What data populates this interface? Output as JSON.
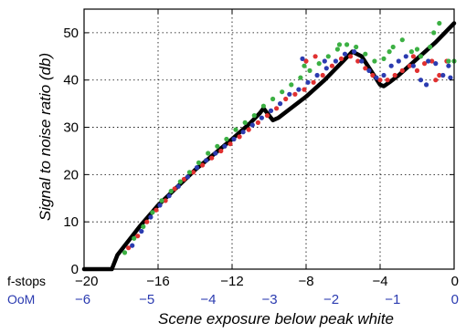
{
  "chart_data": {
    "type": "scatter",
    "xlabel": "Scene exposure below peak white",
    "ylabel": "Signal to noise ratio (db)",
    "xlim": [
      -20,
      0
    ],
    "ylim": [
      0,
      55
    ],
    "grid": true,
    "x_ticks": [
      -20,
      -16,
      -12,
      -8,
      -4,
      0
    ],
    "x_tick_labels": [
      "−20",
      "−16",
      "−12",
      "−8",
      "−4",
      "0"
    ],
    "y_ticks": [
      0,
      10,
      20,
      30,
      40,
      50
    ],
    "y_tick_labels": [
      "0",
      "10",
      "20",
      "30",
      "40",
      "50"
    ],
    "secondary_axis": {
      "label": "OoM",
      "ticks": [
        -20,
        -16.61,
        -13.29,
        -9.97,
        -6.64,
        -3.32,
        0
      ],
      "tick_labels": [
        "−6",
        "−5",
        "−4",
        "−3",
        "−2",
        "−1",
        "0"
      ],
      "color": "#2b3bb0"
    },
    "primary_axis_label": "f-stops",
    "series": [
      {
        "color": "#000000",
        "style": "line",
        "points": [
          [
            -20,
            0
          ],
          [
            -18.8,
            0
          ],
          [
            -18.5,
            0
          ],
          [
            -18.2,
            3
          ],
          [
            -17,
            9
          ],
          [
            -16,
            13.5
          ],
          [
            -14,
            21
          ],
          [
            -12,
            27.5
          ],
          [
            -11,
            31
          ],
          [
            -10.5,
            33
          ],
          [
            -10.3,
            34
          ],
          [
            -10.1,
            33
          ],
          [
            -9.8,
            31.5
          ],
          [
            -9.5,
            32
          ],
          [
            -8,
            36.5
          ],
          [
            -7,
            40
          ],
          [
            -6,
            44
          ],
          [
            -5.5,
            46
          ],
          [
            -5,
            45
          ],
          [
            -4.5,
            42
          ],
          [
            -4,
            39
          ],
          [
            -3.8,
            38.7
          ],
          [
            -3.5,
            39.5
          ],
          [
            -3,
            41
          ],
          [
            -2,
            44.5
          ],
          [
            -1,
            48
          ],
          [
            0,
            52
          ]
        ]
      },
      {
        "color": "#e03030",
        "style": "markers",
        "points": [
          [
            -17.6,
            4.5
          ],
          [
            -17.1,
            7
          ],
          [
            -16.6,
            10
          ],
          [
            -16.1,
            12.5
          ],
          [
            -15.6,
            14.5
          ],
          [
            -15.1,
            17
          ],
          [
            -14.6,
            19
          ],
          [
            -14.1,
            20.5
          ],
          [
            -13.6,
            22
          ],
          [
            -13.1,
            23.5
          ],
          [
            -12.6,
            25
          ],
          [
            -12.1,
            26.5
          ],
          [
            -11.6,
            28
          ],
          [
            -11.1,
            29.5
          ],
          [
            -10.6,
            31
          ],
          [
            -10.1,
            32.5
          ],
          [
            -9.6,
            34
          ],
          [
            -9.1,
            36
          ],
          [
            -8.6,
            37
          ],
          [
            -8.1,
            38
          ],
          [
            -7.6,
            39.5
          ],
          [
            -7.1,
            41
          ],
          [
            -6.6,
            43
          ],
          [
            -6.1,
            44.5
          ],
          [
            -5.6,
            45
          ],
          [
            -5.2,
            44
          ],
          [
            -4.8,
            42.5
          ],
          [
            -4.4,
            41
          ],
          [
            -4.0,
            40
          ],
          [
            -3.6,
            40
          ],
          [
            -3.2,
            41
          ],
          [
            -2.8,
            42
          ],
          [
            -2.4,
            43
          ],
          [
            -2.0,
            42
          ],
          [
            -1.6,
            43.5
          ],
          [
            -1.2,
            44
          ],
          [
            -0.8,
            41
          ],
          [
            -0.4,
            44
          ],
          [
            -8.0,
            44
          ],
          [
            -7.5,
            45
          ],
          [
            -2.2,
            45
          ],
          [
            -1.0,
            40
          ]
        ]
      },
      {
        "color": "#2b3bb0",
        "style": "markers",
        "points": [
          [
            -17.4,
            5
          ],
          [
            -16.9,
            8
          ],
          [
            -16.4,
            11
          ],
          [
            -15.9,
            13.5
          ],
          [
            -15.4,
            15.5
          ],
          [
            -14.9,
            17.5
          ],
          [
            -14.4,
            19.5
          ],
          [
            -13.9,
            21.5
          ],
          [
            -13.4,
            23
          ],
          [
            -12.9,
            24.5
          ],
          [
            -12.4,
            26
          ],
          [
            -11.9,
            27.5
          ],
          [
            -11.4,
            29
          ],
          [
            -10.9,
            30.5
          ],
          [
            -10.4,
            32
          ],
          [
            -9.9,
            33.5
          ],
          [
            -9.4,
            35
          ],
          [
            -8.9,
            37
          ],
          [
            -8.4,
            38
          ],
          [
            -7.9,
            39.5
          ],
          [
            -7.4,
            41
          ],
          [
            -6.9,
            42.5
          ],
          [
            -6.4,
            44
          ],
          [
            -5.9,
            45.5
          ],
          [
            -5.4,
            46
          ],
          [
            -5.0,
            44
          ],
          [
            -4.6,
            42
          ],
          [
            -4.2,
            40.5
          ],
          [
            -3.8,
            41
          ],
          [
            -3.4,
            43
          ],
          [
            -3.0,
            44
          ],
          [
            -2.6,
            45
          ],
          [
            -2.2,
            43
          ],
          [
            -1.8,
            40
          ],
          [
            -1.4,
            44
          ],
          [
            -1.0,
            43.5
          ],
          [
            -0.6,
            41
          ],
          [
            -0.2,
            40.5
          ],
          [
            -8.2,
            44.5
          ],
          [
            -7.0,
            44
          ],
          [
            -1.5,
            39
          ],
          [
            -0.3,
            43
          ]
        ]
      },
      {
        "color": "#3cb043",
        "style": "markers",
        "points": [
          [
            -17.8,
            3.5
          ],
          [
            -17.3,
            6.5
          ],
          [
            -16.8,
            9
          ],
          [
            -16.3,
            12
          ],
          [
            -15.8,
            14.5
          ],
          [
            -15.3,
            16.5
          ],
          [
            -14.8,
            18.5
          ],
          [
            -14.3,
            20.5
          ],
          [
            -13.8,
            22.5
          ],
          [
            -13.3,
            24.5
          ],
          [
            -12.8,
            26
          ],
          [
            -12.3,
            27.5
          ],
          [
            -11.8,
            29.5
          ],
          [
            -11.3,
            31
          ],
          [
            -10.8,
            32.5
          ],
          [
            -10.3,
            34.5
          ],
          [
            -9.8,
            36
          ],
          [
            -9.3,
            37.5
          ],
          [
            -8.8,
            39
          ],
          [
            -8.3,
            40.5
          ],
          [
            -7.8,
            42
          ],
          [
            -7.3,
            43.5
          ],
          [
            -6.8,
            45
          ],
          [
            -6.3,
            46.5
          ],
          [
            -5.8,
            47.5
          ],
          [
            -5.3,
            47
          ],
          [
            -4.8,
            45.5
          ],
          [
            -4.3,
            44
          ],
          [
            -3.8,
            44.5
          ],
          [
            -3.3,
            47
          ],
          [
            -2.8,
            48.5
          ],
          [
            -2.3,
            46
          ],
          [
            -1.8,
            45
          ],
          [
            -1.3,
            47
          ],
          [
            -0.8,
            52
          ],
          [
            -0.3,
            44
          ],
          [
            -8.1,
            43
          ],
          [
            -6.2,
            47.5
          ],
          [
            -3.5,
            46
          ],
          [
            -2.0,
            46.5
          ],
          [
            -1.1,
            50
          ],
          [
            0.0,
            44
          ]
        ]
      }
    ]
  }
}
